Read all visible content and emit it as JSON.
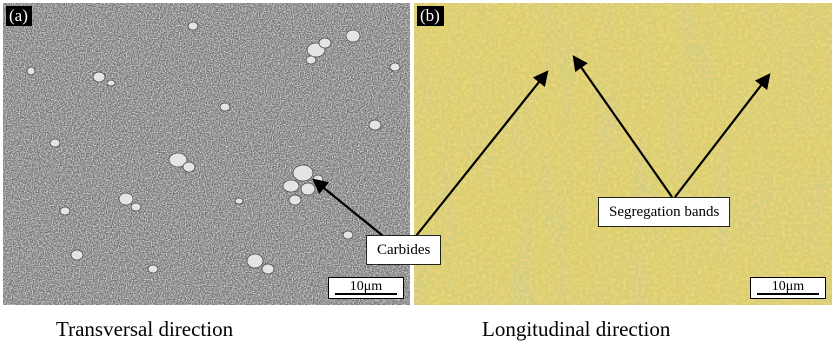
{
  "panels": [
    {
      "label": "(a)",
      "scale_bar": "10μm",
      "caption": "Transversal direction"
    },
    {
      "label": "(b)",
      "scale_bar": "10μm",
      "caption": "Longitudinal direction"
    }
  ],
  "annotations": {
    "carbides": "Carbides",
    "segregation": "Segregation bands"
  },
  "colors": {
    "sem_background": "#6f6f6f",
    "optical_background": "#d8cf72",
    "particle_light": "#e2e2e2",
    "particle_yellow": "#e5b43a",
    "arrow": "#000000"
  }
}
